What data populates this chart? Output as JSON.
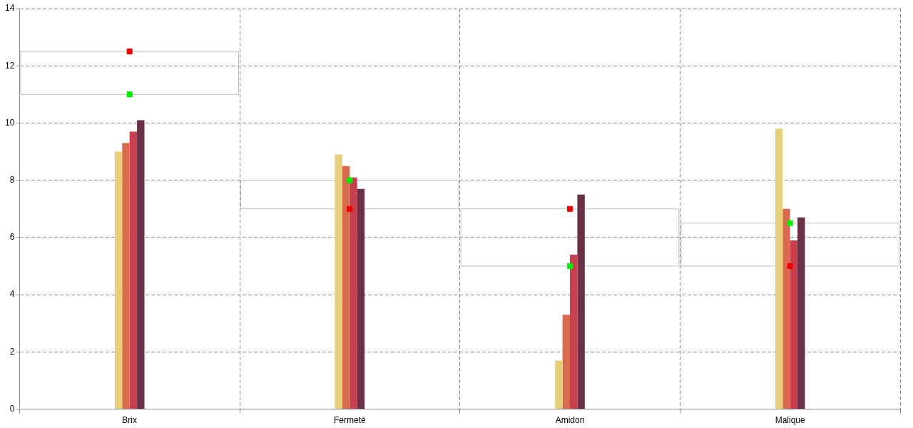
{
  "chart_data": {
    "type": "bar",
    "categories": [
      "Brix",
      "Fermeté",
      "Amidon",
      "Malique"
    ],
    "series": [
      {
        "color": "#e8cf7c",
        "values": [
          9.0,
          8.9,
          1.7,
          9.8
        ]
      },
      {
        "color": "#d9694f",
        "values": [
          9.3,
          8.5,
          3.3,
          7.0
        ]
      },
      {
        "color": "#c8404f",
        "values": [
          9.7,
          8.1,
          5.4,
          5.9
        ]
      },
      {
        "color": "#6a3048",
        "values": [
          10.1,
          7.7,
          7.5,
          6.7
        ]
      },
      {
        "type": "scatter",
        "color": "#00ee00",
        "x": [
          "Brix",
          "Fermeté",
          "Amidon",
          "Malique"
        ],
        "values": [
          11,
          8,
          5,
          6.5
        ]
      },
      {
        "type": "scatter",
        "color": "#ee0000",
        "x": [
          "Brix",
          "Fermeté",
          "Amidon",
          "Malique"
        ],
        "values": [
          12.5,
          7,
          7,
          5
        ]
      }
    ],
    "marker": "square",
    "ylim": [
      0,
      14
    ],
    "yticks": [
      0,
      2,
      4,
      6,
      8,
      10,
      12,
      14
    ],
    "grid": true,
    "legend": false
  }
}
